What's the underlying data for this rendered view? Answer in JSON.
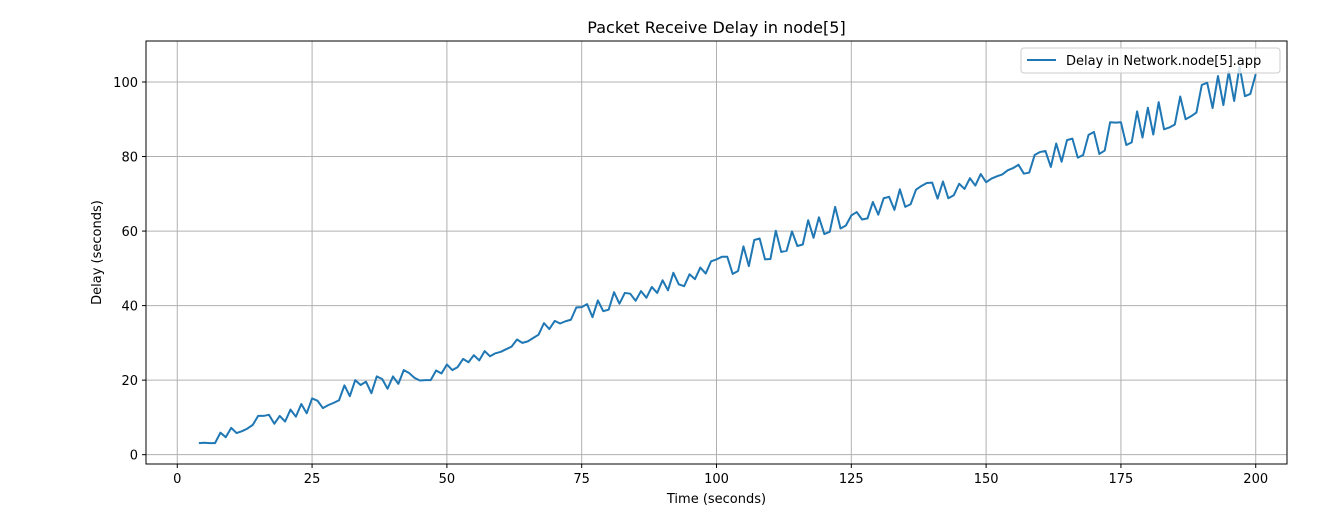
{
  "chart_data": {
    "type": "line",
    "title": "Packet Receive Delay in node[5]",
    "xlabel": "Time (seconds)",
    "ylabel": "Delay (seconds)",
    "xlim": [
      -5.8,
      205.8
    ],
    "ylim": [
      -2.5,
      111
    ],
    "xticks": [
      0,
      25,
      50,
      75,
      100,
      125,
      150,
      175,
      200
    ],
    "yticks": [
      0,
      20,
      40,
      60,
      80,
      100
    ],
    "grid": true,
    "legend_position": "upper-right",
    "series": [
      {
        "name": "Delay in Network.node[5].app",
        "color": "#1f77b4",
        "x": [
          4,
          5,
          6,
          7,
          8,
          9,
          10,
          11,
          12,
          13,
          14,
          15,
          16,
          17,
          18,
          19,
          20,
          21,
          22,
          23,
          24,
          25,
          26,
          27,
          28,
          29,
          30,
          31,
          32,
          33,
          34,
          35,
          36,
          37,
          38,
          39,
          40,
          41,
          42,
          43,
          44,
          45,
          46,
          47,
          48,
          49,
          50,
          51,
          52,
          53,
          54,
          55,
          56,
          57,
          58,
          59,
          60,
          61,
          62,
          63,
          64,
          65,
          66,
          67,
          68,
          69,
          70,
          71,
          72,
          73,
          74,
          75,
          76,
          77,
          78,
          79,
          80,
          81,
          82,
          83,
          84,
          85,
          86,
          87,
          88,
          89,
          90,
          91,
          92,
          93,
          94,
          95,
          96,
          97,
          98,
          99,
          100,
          101,
          102,
          103,
          104,
          105,
          106,
          107,
          108,
          109,
          110,
          111,
          112,
          113,
          114,
          115,
          116,
          117,
          118,
          119,
          120,
          121,
          122,
          123,
          124,
          125,
          126,
          127,
          128,
          129,
          130,
          131,
          132,
          133,
          134,
          135,
          136,
          137,
          138,
          139,
          140,
          141,
          142,
          143,
          144,
          145,
          146,
          147,
          148,
          149,
          150,
          151,
          152,
          153,
          154,
          155,
          156,
          157,
          158,
          159,
          160,
          161,
          162,
          163,
          164,
          165,
          166,
          167,
          168,
          169,
          170,
          171,
          172,
          173,
          174,
          175,
          176,
          177,
          178,
          179,
          180,
          181,
          182,
          183,
          184,
          185,
          186,
          187,
          188,
          189,
          190,
          191,
          192,
          193,
          194,
          195,
          196,
          197,
          198,
          199,
          200
        ],
        "y": [
          3.1,
          3.2,
          3.1,
          3.1,
          5.9,
          4.7,
          7.2,
          5.8,
          6.3,
          7.0,
          8.0,
          10.4,
          10.4,
          10.7,
          8.3,
          10.4,
          8.9,
          12.1,
          10.2,
          13.6,
          11.1,
          15.1,
          14.5,
          12.5,
          13.3,
          13.9,
          14.6,
          18.6,
          15.7,
          20.0,
          18.7,
          19.6,
          16.5,
          21.0,
          20.3,
          17.7,
          21.0,
          19.0,
          22.7,
          21.9,
          20.6,
          19.9,
          20.0,
          20.0,
          22.6,
          21.8,
          24.2,
          22.7,
          23.5,
          25.7,
          24.8,
          26.7,
          25.3,
          27.8,
          26.4,
          27.2,
          27.6,
          28.3,
          29.0,
          30.9,
          30.0,
          30.4,
          31.3,
          32.2,
          35.3,
          33.7,
          35.9,
          35.2,
          35.8,
          36.2,
          39.5,
          39.6,
          40.4,
          36.9,
          41.4,
          38.5,
          38.9,
          43.6,
          40.5,
          43.4,
          43.2,
          41.3,
          43.9,
          42.1,
          45.0,
          43.4,
          46.8,
          44.1,
          48.8,
          45.7,
          45.2,
          48.4,
          47.1,
          50.2,
          48.6,
          51.9,
          52.4,
          53.1,
          53.1,
          48.5,
          49.3,
          55.9,
          50.6,
          57.6,
          58.0,
          52.4,
          52.5,
          60.1,
          54.4,
          54.7,
          59.9,
          56.0,
          56.4,
          62.9,
          58.2,
          63.7,
          59.2,
          59.8,
          66.5,
          60.7,
          61.5,
          64.2,
          65.1,
          63.1,
          63.4,
          67.8,
          64.4,
          68.8,
          69.2,
          65.7,
          71.2,
          66.5,
          67.2,
          71.1,
          72.1,
          72.9,
          73.0,
          68.7,
          73.3,
          68.8,
          69.6,
          72.7,
          71.3,
          74.2,
          72.2,
          75.3,
          73.1,
          74.1,
          74.7,
          75.2,
          76.3,
          76.9,
          77.8,
          75.4,
          75.7,
          80.4,
          81.2,
          81.5,
          77.2,
          83.5,
          78.6,
          84.4,
          84.8,
          79.7,
          80.4,
          85.8,
          86.6,
          80.7,
          81.6,
          89.2,
          89.1,
          89.2,
          83.1,
          83.8,
          92.1,
          85.1,
          93.1,
          85.9,
          94.6,
          87.3,
          87.8,
          88.6,
          96.1,
          90.0,
          90.8,
          91.8,
          99.2,
          99.8,
          93.0,
          101.6,
          93.8,
          102.8,
          94.9,
          104.2,
          96.2,
          96.8,
          102.1
        ]
      }
    ]
  }
}
